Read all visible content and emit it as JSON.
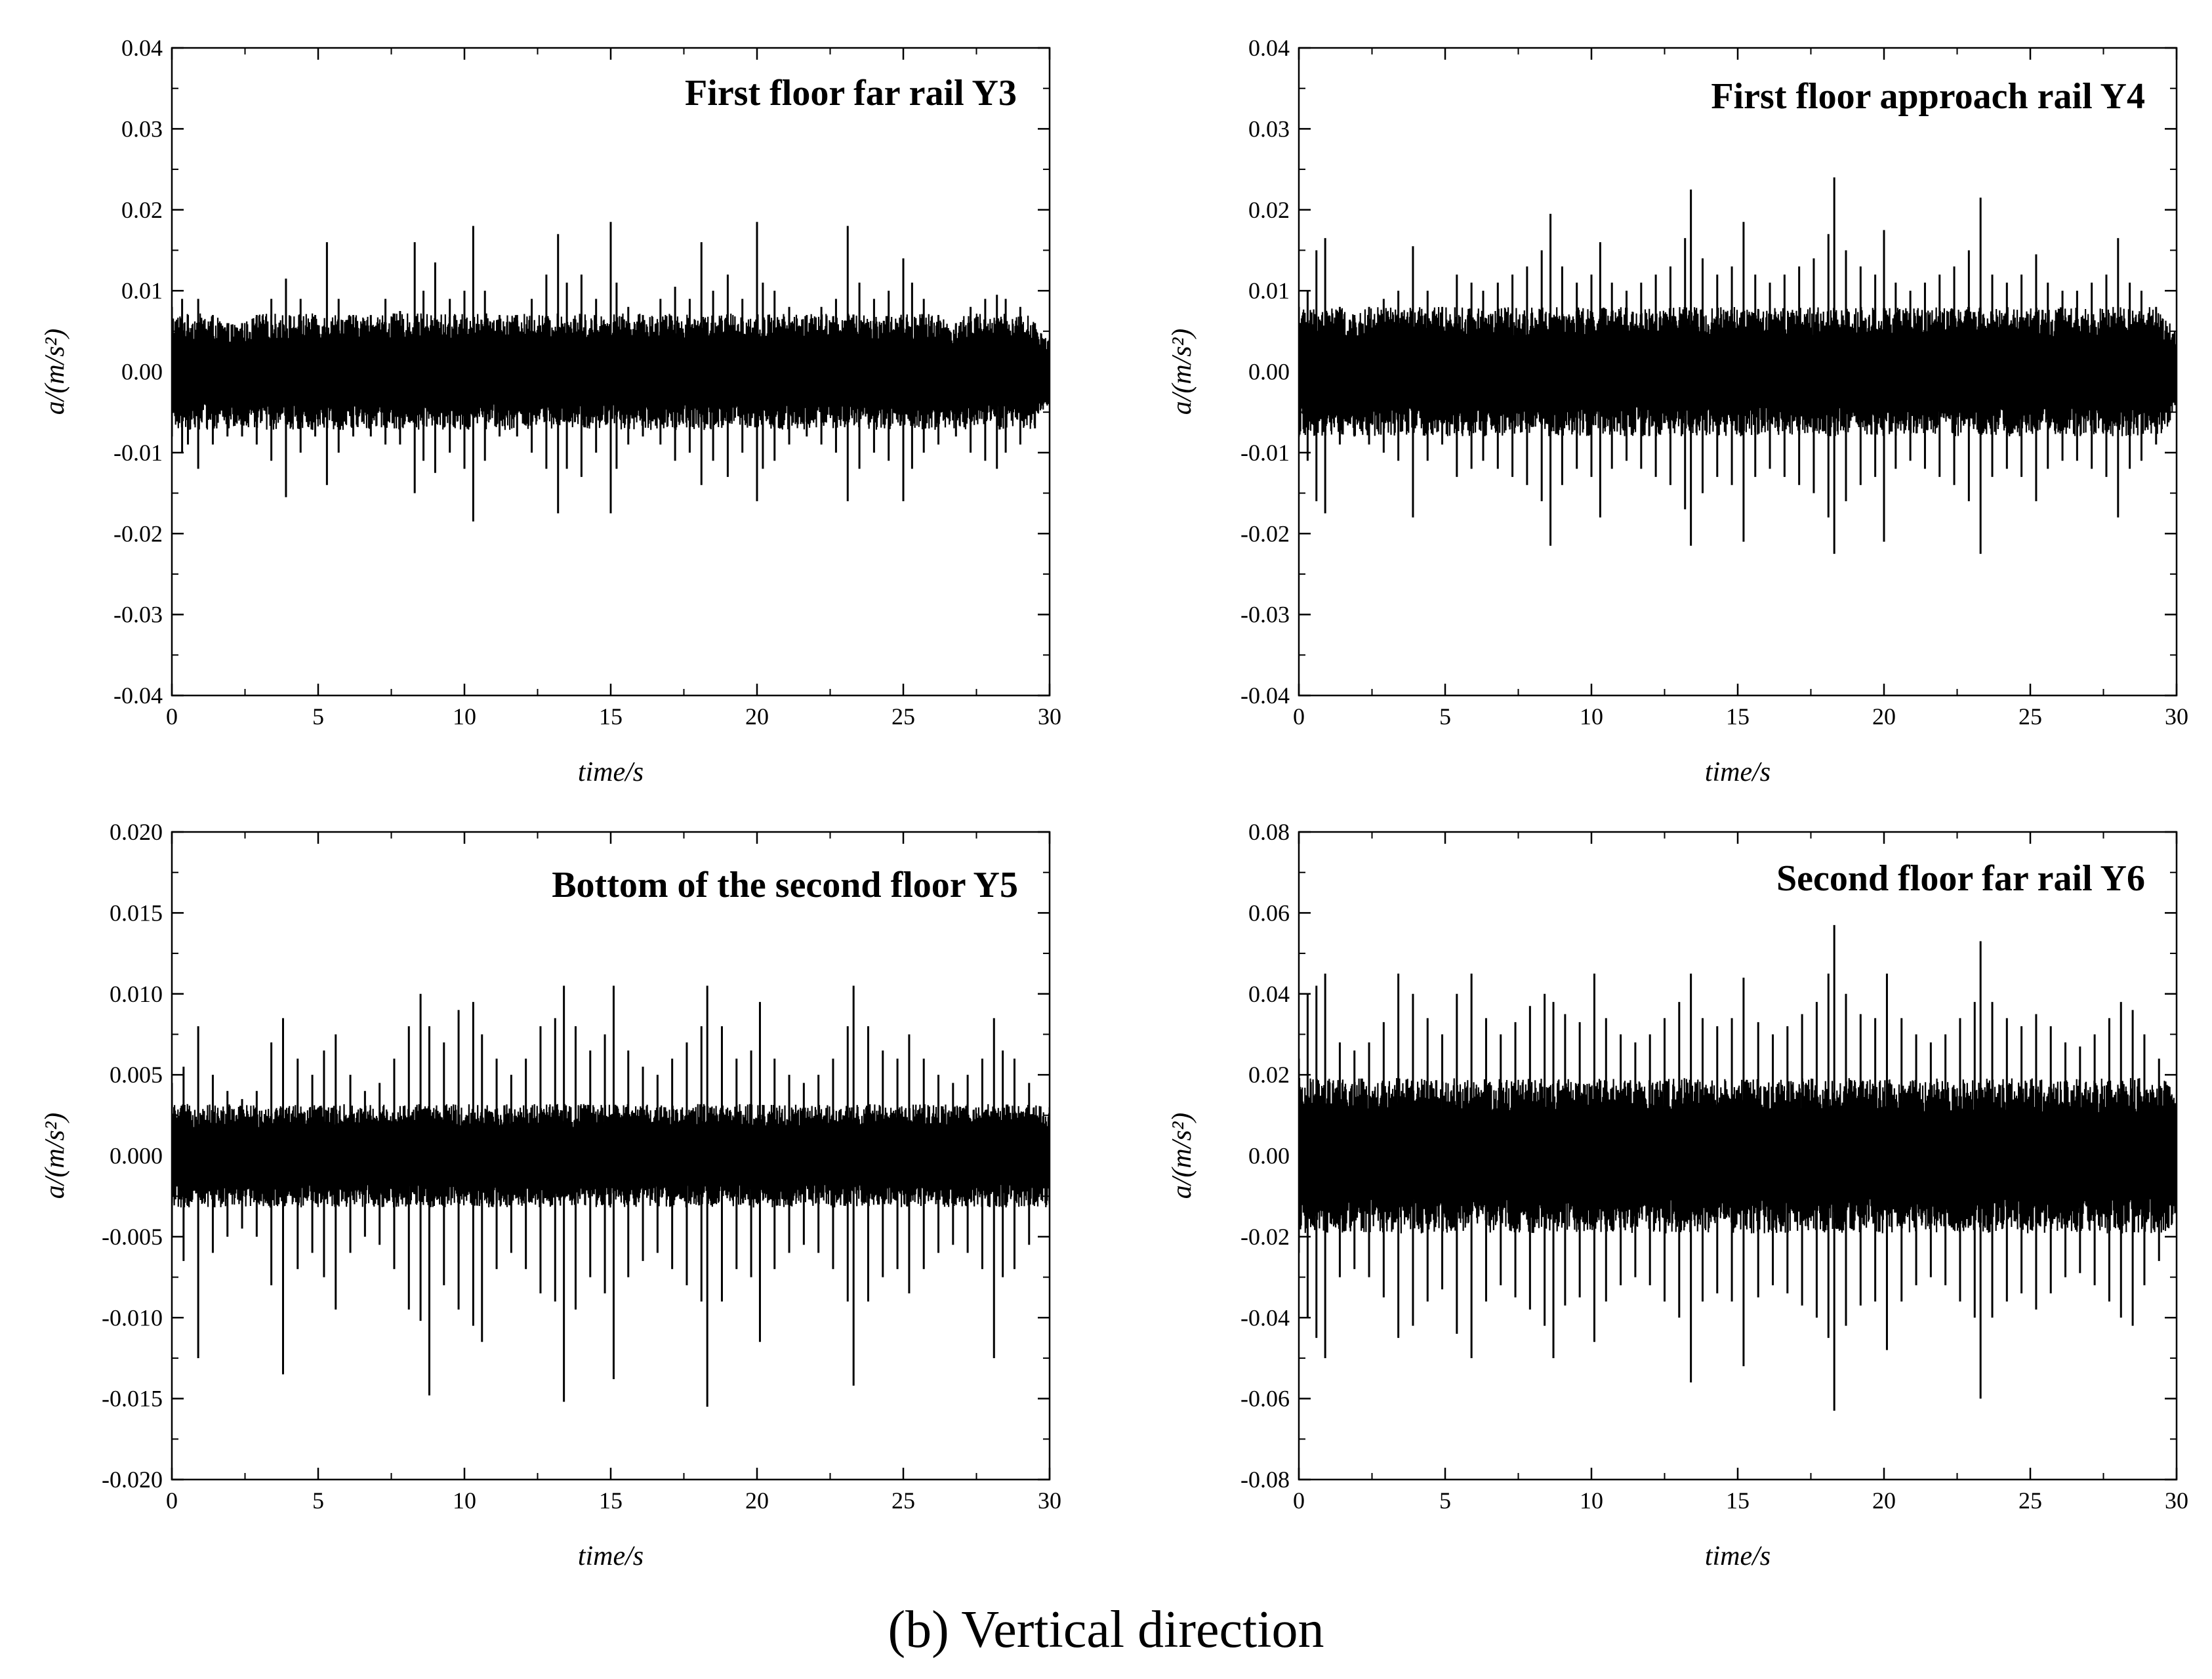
{
  "caption": "(b) Vertical direction",
  "chart_data": [
    {
      "type": "line",
      "title": "First floor far rail Y3",
      "xlabel": "time/s",
      "ylabel": "a/(m/s²)",
      "xlim": [
        0,
        30
      ],
      "ylim": [
        -0.04,
        0.04
      ],
      "xticks": [
        "0",
        "5",
        "10",
        "15",
        "20",
        "25",
        "30"
      ],
      "yticks": [
        "-0.04",
        "-0.03",
        "-0.02",
        "-0.01",
        "0.00",
        "0.01",
        "0.02",
        "0.03",
        "0.04"
      ],
      "grid": false,
      "series": [
        {
          "color": "#000000",
          "base_amplitude": 0.0045,
          "x": [
            0.0,
            0.35,
            0.55,
            0.9,
            1.4,
            1.9,
            2.4,
            2.9,
            3.4,
            3.9,
            4.4,
            4.9,
            5.3,
            5.7,
            6.2,
            6.8,
            7.3,
            7.8,
            8.3,
            8.6,
            9.0,
            9.5,
            10.0,
            10.3,
            10.7,
            11.2,
            11.8,
            12.3,
            12.8,
            13.2,
            13.5,
            14.0,
            14.5,
            15.0,
            15.2,
            15.6,
            16.1,
            16.7,
            17.2,
            17.7,
            18.1,
            18.5,
            19.0,
            19.5,
            20.0,
            20.2,
            20.6,
            21.1,
            21.7,
            22.2,
            22.7,
            23.1,
            23.5,
            24.0,
            24.5,
            25.0,
            25.3,
            25.7,
            26.2,
            26.8,
            27.3,
            27.8,
            28.2,
            28.5,
            29.0,
            29.5,
            30.0
          ],
          "y_max": [
            0.008,
            0.009,
            0.007,
            0.009,
            0.007,
            0.006,
            0.006,
            0.007,
            0.009,
            0.0115,
            0.009,
            0.007,
            0.016,
            0.009,
            0.007,
            0.007,
            0.009,
            0.0075,
            0.016,
            0.01,
            0.0135,
            0.009,
            0.01,
            0.018,
            0.01,
            0.007,
            0.007,
            0.009,
            0.012,
            0.017,
            0.011,
            0.012,
            0.009,
            0.0185,
            0.011,
            0.008,
            0.007,
            0.009,
            0.0105,
            0.009,
            0.016,
            0.01,
            0.012,
            0.009,
            0.0185,
            0.011,
            0.01,
            0.008,
            0.007,
            0.008,
            0.009,
            0.018,
            0.011,
            0.009,
            0.01,
            0.014,
            0.011,
            0.009,
            0.007,
            0.006,
            0.008,
            0.009,
            0.0095,
            0.009,
            0.008,
            0.006,
            0.004
          ],
          "y_min": [
            -0.008,
            -0.01,
            -0.009,
            -0.012,
            -0.009,
            -0.008,
            -0.008,
            -0.009,
            -0.011,
            -0.0155,
            -0.01,
            -0.008,
            -0.014,
            -0.01,
            -0.008,
            -0.008,
            -0.009,
            -0.009,
            -0.015,
            -0.011,
            -0.0125,
            -0.01,
            -0.012,
            -0.0185,
            -0.011,
            -0.008,
            -0.008,
            -0.01,
            -0.012,
            -0.0175,
            -0.012,
            -0.013,
            -0.01,
            -0.0175,
            -0.012,
            -0.009,
            -0.008,
            -0.009,
            -0.011,
            -0.01,
            -0.014,
            -0.011,
            -0.013,
            -0.01,
            -0.016,
            -0.012,
            -0.011,
            -0.009,
            -0.008,
            -0.009,
            -0.01,
            -0.016,
            -0.012,
            -0.01,
            -0.011,
            -0.016,
            -0.012,
            -0.01,
            -0.009,
            -0.008,
            -0.01,
            -0.011,
            -0.012,
            -0.01,
            -0.009,
            -0.007,
            -0.004
          ]
        }
      ]
    },
    {
      "type": "line",
      "title": "First floor approach rail Y4",
      "xlabel": "time/s",
      "ylabel": "a/(m/s²)",
      "xlim": [
        0,
        30
      ],
      "ylim": [
        -0.04,
        0.04
      ],
      "xticks": [
        "0",
        "5",
        "10",
        "15",
        "20",
        "25",
        "30"
      ],
      "yticks": [
        "-0.04",
        "-0.03",
        "-0.02",
        "-0.01",
        "0.00",
        "0.01",
        "0.02",
        "0.03",
        "0.04"
      ],
      "grid": false,
      "series": [
        {
          "color": "#000000",
          "base_amplitude": 0.005,
          "x": [
            0.0,
            0.3,
            0.6,
            0.9,
            1.4,
            1.9,
            2.4,
            2.9,
            3.4,
            3.9,
            4.4,
            4.9,
            5.4,
            5.9,
            6.3,
            6.8,
            7.3,
            7.8,
            8.3,
            8.6,
            9.0,
            9.5,
            10.0,
            10.3,
            10.7,
            11.2,
            11.7,
            12.2,
            12.7,
            13.2,
            13.4,
            13.8,
            14.3,
            14.8,
            15.2,
            15.6,
            16.1,
            16.6,
            17.1,
            17.6,
            18.1,
            18.3,
            18.7,
            19.2,
            19.7,
            20.0,
            20.4,
            20.9,
            21.4,
            21.9,
            22.4,
            22.9,
            23.3,
            23.7,
            24.2,
            24.7,
            25.2,
            25.6,
            26.1,
            26.6,
            27.1,
            27.6,
            28.0,
            28.4,
            28.8,
            29.3,
            30.0
          ],
          "y_max": [
            0.008,
            0.01,
            0.015,
            0.0165,
            0.008,
            0.007,
            0.008,
            0.009,
            0.01,
            0.0155,
            0.01,
            0.008,
            0.012,
            0.011,
            0.01,
            0.011,
            0.012,
            0.013,
            0.015,
            0.0195,
            0.013,
            0.011,
            0.012,
            0.016,
            0.011,
            0.01,
            0.011,
            0.012,
            0.013,
            0.0165,
            0.0225,
            0.014,
            0.012,
            0.013,
            0.0185,
            0.012,
            0.011,
            0.012,
            0.013,
            0.014,
            0.017,
            0.024,
            0.015,
            0.013,
            0.012,
            0.0175,
            0.011,
            0.01,
            0.011,
            0.012,
            0.013,
            0.015,
            0.0215,
            0.012,
            0.011,
            0.012,
            0.0145,
            0.011,
            0.01,
            0.01,
            0.011,
            0.012,
            0.0165,
            0.011,
            0.01,
            0.008,
            0.005
          ],
          "y_min": [
            -0.008,
            -0.011,
            -0.016,
            -0.0175,
            -0.009,
            -0.008,
            -0.009,
            -0.01,
            -0.011,
            -0.018,
            -0.011,
            -0.009,
            -0.013,
            -0.012,
            -0.011,
            -0.012,
            -0.013,
            -0.014,
            -0.016,
            -0.0215,
            -0.014,
            -0.012,
            -0.013,
            -0.018,
            -0.012,
            -0.011,
            -0.012,
            -0.013,
            -0.014,
            -0.017,
            -0.0215,
            -0.015,
            -0.013,
            -0.014,
            -0.021,
            -0.013,
            -0.012,
            -0.013,
            -0.014,
            -0.015,
            -0.018,
            -0.0225,
            -0.016,
            -0.014,
            -0.013,
            -0.021,
            -0.012,
            -0.011,
            -0.012,
            -0.013,
            -0.014,
            -0.016,
            -0.0225,
            -0.013,
            -0.012,
            -0.013,
            -0.016,
            -0.012,
            -0.011,
            -0.011,
            -0.012,
            -0.013,
            -0.018,
            -0.012,
            -0.011,
            -0.009,
            -0.005
          ]
        }
      ]
    },
    {
      "type": "line",
      "title": "Bottom of the second floor Y5",
      "xlabel": "time/s",
      "ylabel": "a/(m/s²)",
      "xlim": [
        0,
        30
      ],
      "ylim": [
        -0.02,
        0.02
      ],
      "xticks": [
        "0",
        "5",
        "10",
        "15",
        "20",
        "25",
        "30"
      ],
      "yticks": [
        "-0.020",
        "-0.015",
        "-0.010",
        "-0.005",
        "0.000",
        "0.005",
        "0.010",
        "0.015",
        "0.020"
      ],
      "grid": false,
      "series": [
        {
          "color": "#000000",
          "base_amplitude": 0.002,
          "x": [
            0.0,
            0.4,
            0.9,
            1.4,
            1.9,
            2.4,
            2.9,
            3.4,
            3.8,
            4.3,
            4.8,
            5.2,
            5.6,
            6.1,
            6.6,
            7.1,
            7.6,
            8.1,
            8.5,
            8.8,
            9.3,
            9.8,
            10.3,
            10.6,
            11.1,
            11.6,
            12.1,
            12.6,
            13.1,
            13.4,
            13.8,
            14.3,
            14.8,
            15.1,
            15.6,
            16.1,
            16.6,
            17.1,
            17.6,
            18.1,
            18.3,
            18.8,
            19.3,
            19.8,
            20.1,
            20.6,
            21.1,
            21.6,
            22.1,
            22.6,
            23.1,
            23.3,
            23.8,
            24.3,
            24.8,
            25.2,
            25.7,
            26.2,
            26.7,
            27.2,
            27.7,
            28.1,
            28.4,
            28.8,
            29.3,
            30.0
          ],
          "y_max": [
            0.0045,
            0.0055,
            0.008,
            0.005,
            0.004,
            0.0035,
            0.004,
            0.007,
            0.0085,
            0.006,
            0.005,
            0.0065,
            0.0075,
            0.005,
            0.004,
            0.0045,
            0.006,
            0.008,
            0.01,
            0.008,
            0.007,
            0.009,
            0.0095,
            0.0075,
            0.006,
            0.005,
            0.006,
            0.008,
            0.0085,
            0.0105,
            0.008,
            0.0065,
            0.0075,
            0.0105,
            0.0065,
            0.0055,
            0.005,
            0.006,
            0.007,
            0.008,
            0.0105,
            0.008,
            0.006,
            0.0065,
            0.0095,
            0.006,
            0.005,
            0.0045,
            0.005,
            0.006,
            0.008,
            0.0105,
            0.008,
            0.0065,
            0.006,
            0.0075,
            0.006,
            0.005,
            0.0045,
            0.005,
            0.006,
            0.0085,
            0.0065,
            0.006,
            0.0045,
            0.003
          ],
          "y_min": [
            -0.005,
            -0.0065,
            -0.0125,
            -0.006,
            -0.005,
            -0.0045,
            -0.005,
            -0.008,
            -0.0135,
            -0.007,
            -0.006,
            -0.0075,
            -0.0095,
            -0.006,
            -0.005,
            -0.0055,
            -0.007,
            -0.0095,
            -0.0102,
            -0.0148,
            -0.008,
            -0.0095,
            -0.0105,
            -0.0115,
            -0.007,
            -0.006,
            -0.007,
            -0.0085,
            -0.009,
            -0.0152,
            -0.0095,
            -0.0075,
            -0.0085,
            -0.0138,
            -0.0075,
            -0.0065,
            -0.006,
            -0.007,
            -0.008,
            -0.009,
            -0.0155,
            -0.009,
            -0.007,
            -0.0075,
            -0.0115,
            -0.007,
            -0.006,
            -0.0055,
            -0.006,
            -0.007,
            -0.009,
            -0.0142,
            -0.009,
            -0.0075,
            -0.007,
            -0.0085,
            -0.007,
            -0.006,
            -0.0055,
            -0.006,
            -0.007,
            -0.0125,
            -0.0075,
            -0.007,
            -0.0055,
            -0.003
          ]
        }
      ]
    },
    {
      "type": "line",
      "title": "Second floor far rail Y6",
      "xlabel": "time/s",
      "ylabel": "a/(m/s²)",
      "xlim": [
        0,
        30
      ],
      "ylim": [
        -0.08,
        0.08
      ],
      "xticks": [
        "0",
        "5",
        "10",
        "15",
        "20",
        "25",
        "30"
      ],
      "yticks": [
        "-0.08",
        "-0.06",
        "-0.04",
        "-0.02",
        "0.00",
        "0.02",
        "0.04",
        "0.06",
        "0.08"
      ],
      "grid": false,
      "series": [
        {
          "color": "#000000",
          "base_amplitude": 0.012,
          "x": [
            0.0,
            0.3,
            0.6,
            0.9,
            1.4,
            1.9,
            2.4,
            2.9,
            3.4,
            3.9,
            4.4,
            4.9,
            5.4,
            5.9,
            6.4,
            6.9,
            7.4,
            7.9,
            8.4,
            8.7,
            9.1,
            9.6,
            10.1,
            10.5,
            11.0,
            11.5,
            12.0,
            12.5,
            13.0,
            13.4,
            13.8,
            14.3,
            14.8,
            15.2,
            15.7,
            16.2,
            16.7,
            17.2,
            17.7,
            18.1,
            18.3,
            18.7,
            19.2,
            19.7,
            20.1,
            20.6,
            21.1,
            21.6,
            22.1,
            22.6,
            23.1,
            23.3,
            23.7,
            24.2,
            24.7,
            25.2,
            25.7,
            26.2,
            26.7,
            27.2,
            27.7,
            28.1,
            28.5,
            28.9,
            29.4,
            30.0
          ],
          "y_max": [
            0.024,
            0.04,
            0.042,
            0.045,
            0.028,
            0.026,
            0.028,
            0.033,
            0.045,
            0.04,
            0.034,
            0.03,
            0.04,
            0.045,
            0.034,
            0.03,
            0.033,
            0.037,
            0.04,
            0.038,
            0.035,
            0.033,
            0.045,
            0.034,
            0.03,
            0.028,
            0.03,
            0.034,
            0.038,
            0.045,
            0.034,
            0.032,
            0.034,
            0.044,
            0.033,
            0.03,
            0.032,
            0.035,
            0.038,
            0.045,
            0.057,
            0.04,
            0.035,
            0.034,
            0.045,
            0.034,
            0.03,
            0.028,
            0.03,
            0.034,
            0.038,
            0.053,
            0.038,
            0.034,
            0.032,
            0.035,
            0.032,
            0.028,
            0.027,
            0.03,
            0.034,
            0.038,
            0.036,
            0.03,
            0.024,
            0.013
          ],
          "y_min": [
            -0.024,
            -0.04,
            -0.045,
            -0.05,
            -0.03,
            -0.028,
            -0.03,
            -0.035,
            -0.045,
            -0.042,
            -0.036,
            -0.033,
            -0.044,
            -0.05,
            -0.036,
            -0.032,
            -0.035,
            -0.038,
            -0.042,
            -0.05,
            -0.037,
            -0.035,
            -0.046,
            -0.036,
            -0.032,
            -0.03,
            -0.032,
            -0.036,
            -0.04,
            -0.056,
            -0.036,
            -0.034,
            -0.036,
            -0.052,
            -0.035,
            -0.032,
            -0.034,
            -0.037,
            -0.04,
            -0.045,
            -0.063,
            -0.042,
            -0.037,
            -0.036,
            -0.048,
            -0.036,
            -0.032,
            -0.03,
            -0.032,
            -0.036,
            -0.04,
            -0.06,
            -0.04,
            -0.036,
            -0.034,
            -0.038,
            -0.034,
            -0.03,
            -0.029,
            -0.032,
            -0.036,
            -0.04,
            -0.042,
            -0.032,
            -0.026,
            -0.014
          ]
        }
      ]
    }
  ]
}
